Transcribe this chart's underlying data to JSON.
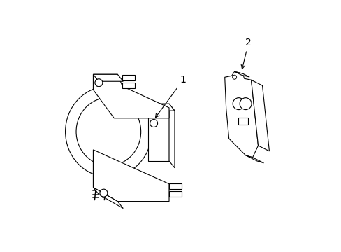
{
  "background_color": "#ffffff",
  "line_color": "#000000",
  "line_width": 0.8,
  "label1": "1",
  "label2": "2",
  "label_fontsize": 10
}
